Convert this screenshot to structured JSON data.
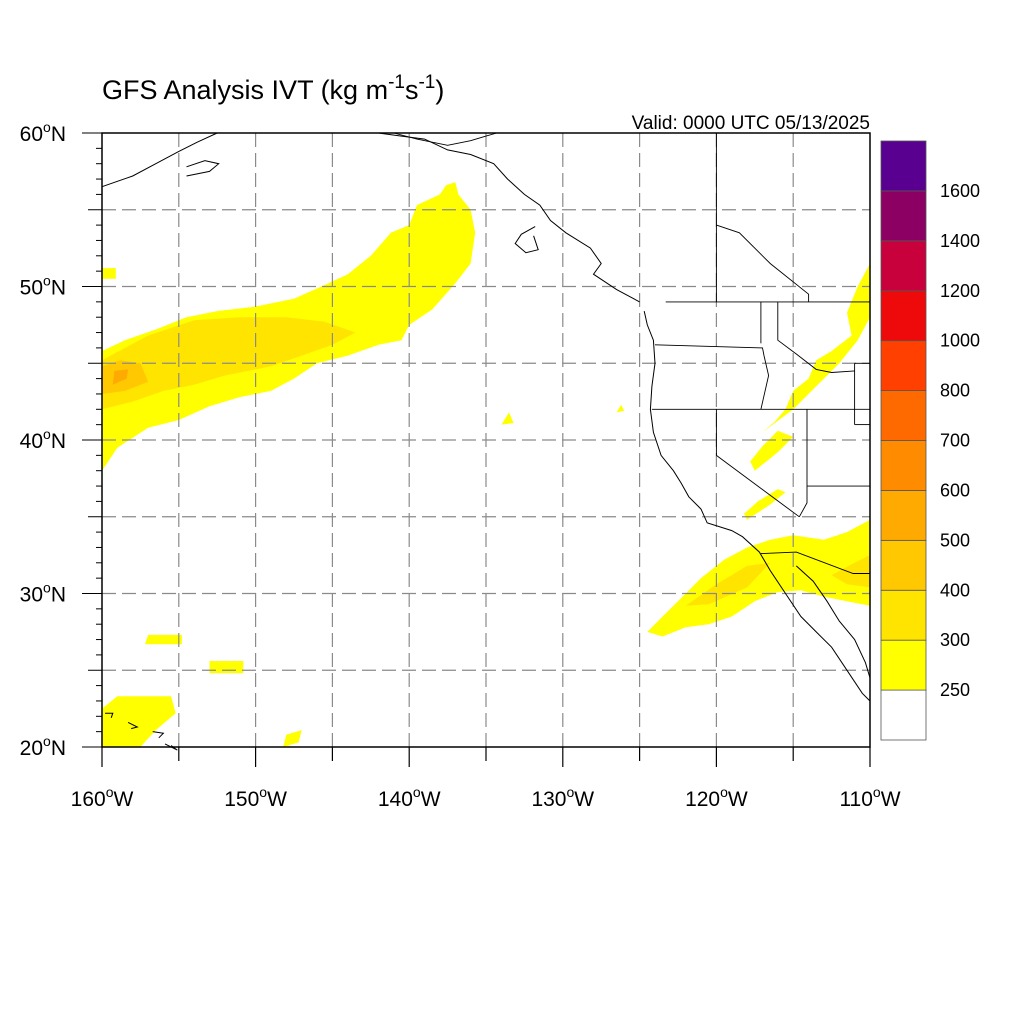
{
  "title": {
    "main": "GFS Analysis IVT (kg m",
    "sup1": "-1",
    "mid": "s",
    "sup2": "-1",
    "close": ")"
  },
  "valid_time": "Valid: 0000 UTC 05/13/2025",
  "map": {
    "projection": "cylindrical equidistant",
    "lon_range": [
      -160,
      -110
    ],
    "lat_range": [
      20,
      60
    ],
    "grid": "dashed gray every 5 degrees",
    "lat_labels": [
      "20",
      "30",
      "40",
      "50",
      "60"
    ],
    "lat_suffix": "N",
    "lon_labels": [
      "160",
      "150",
      "140",
      "130",
      "120",
      "110"
    ],
    "lon_suffix": "W"
  },
  "colorbar": {
    "labels": [
      "250",
      "300",
      "400",
      "500",
      "600",
      "700",
      "800",
      "1000",
      "1200",
      "1400",
      "1600"
    ],
    "colors": [
      "#ffffff",
      "#ffff00",
      "#ffe400",
      "#ffc800",
      "#ffaa00",
      "#ff8c00",
      "#ff6a00",
      "#ff4000",
      "#ee0a0a",
      "#c8003c",
      "#8c0064",
      "#5a0090"
    ]
  },
  "ivt_regions": [
    {
      "level": 1,
      "pts": [
        [
          -160,
          38
        ],
        [
          -159,
          39.5
        ],
        [
          -157,
          40.8
        ],
        [
          -155,
          41.3
        ],
        [
          -153,
          42.2
        ],
        [
          -151,
          42.8
        ],
        [
          -149,
          43.2
        ],
        [
          -147.5,
          44
        ],
        [
          -146,
          45
        ],
        [
          -144,
          45.5
        ],
        [
          -142,
          46.2
        ],
        [
          -140.5,
          46.5
        ],
        [
          -140,
          47.5
        ],
        [
          -138.5,
          48.5
        ],
        [
          -137,
          50.2
        ],
        [
          -136,
          51.5
        ],
        [
          -135.7,
          53.5
        ],
        [
          -136,
          55
        ],
        [
          -136.8,
          56
        ],
        [
          -137,
          56.8
        ],
        [
          -137.6,
          56.6
        ],
        [
          -138,
          56
        ],
        [
          -139.5,
          55.3
        ],
        [
          -140,
          54
        ],
        [
          -141.2,
          53.5
        ],
        [
          -142.5,
          52
        ],
        [
          -144,
          50.8
        ],
        [
          -145.5,
          50.1
        ],
        [
          -147.5,
          49.2
        ],
        [
          -150,
          48.7
        ],
        [
          -152.5,
          48.4
        ],
        [
          -154.5,
          48
        ],
        [
          -156.5,
          47.2
        ],
        [
          -158.5,
          46.5
        ],
        [
          -160,
          45.8
        ]
      ]
    },
    {
      "level": 2,
      "pts": [
        [
          -160,
          42
        ],
        [
          -158,
          42.5
        ],
        [
          -156,
          43.2
        ],
        [
          -154,
          43.6
        ],
        [
          -152,
          44.2
        ],
        [
          -149,
          44.8
        ],
        [
          -147,
          45.5
        ],
        [
          -145,
          46.2
        ],
        [
          -143.5,
          47
        ],
        [
          -145.5,
          47.7
        ],
        [
          -148,
          48
        ],
        [
          -151,
          48
        ],
        [
          -154,
          47.8
        ],
        [
          -157,
          46.8
        ],
        [
          -160,
          45.2
        ]
      ]
    },
    {
      "level": 3,
      "pts": [
        [
          -160,
          43
        ],
        [
          -158.5,
          43.2
        ],
        [
          -157,
          43.8
        ],
        [
          -157.5,
          45
        ],
        [
          -158.8,
          45.2
        ],
        [
          -160,
          44.8
        ]
      ]
    },
    {
      "level": 4,
      "pts": [
        [
          -159.3,
          43.6
        ],
        [
          -158.4,
          44
        ],
        [
          -158.3,
          44.6
        ],
        [
          -159.2,
          44.5
        ]
      ]
    },
    {
      "level": 1,
      "pts": [
        [
          -124.5,
          27.5
        ],
        [
          -123.5,
          28.5
        ],
        [
          -122.5,
          29.5
        ],
        [
          -121,
          31
        ],
        [
          -119.5,
          32.2
        ],
        [
          -118,
          33
        ],
        [
          -116.5,
          33.5
        ],
        [
          -115,
          33.8
        ],
        [
          -113,
          33.5
        ],
        [
          -111.5,
          34
        ],
        [
          -110,
          34.8
        ],
        [
          -110,
          29.2
        ],
        [
          -111.5,
          29.5
        ],
        [
          -113,
          29.8
        ],
        [
          -114.5,
          30.2
        ],
        [
          -116,
          30.1
        ],
        [
          -117.5,
          29.5
        ],
        [
          -119,
          28.5
        ],
        [
          -120.5,
          28
        ],
        [
          -122,
          27.8
        ],
        [
          -123.5,
          27.2
        ]
      ]
    },
    {
      "level": 2,
      "pts": [
        [
          -122,
          29.2
        ],
        [
          -120,
          30.6
        ],
        [
          -118,
          31.8
        ],
        [
          -116.5,
          32
        ],
        [
          -118,
          30.4
        ],
        [
          -120.5,
          29.3
        ]
      ]
    },
    {
      "level": 2,
      "pts": [
        [
          -112.5,
          31.2
        ],
        [
          -111,
          32
        ],
        [
          -110,
          32.5
        ],
        [
          -110,
          30.4
        ],
        [
          -111.5,
          30.6
        ]
      ]
    },
    {
      "level": 1,
      "pts": [
        [
          -117,
          40.5
        ],
        [
          -115,
          42
        ],
        [
          -113.5,
          43.5
        ],
        [
          -112,
          45
        ],
        [
          -110.8,
          46.5
        ],
        [
          -110,
          48
        ],
        [
          -110,
          51.5
        ],
        [
          -110.8,
          50
        ],
        [
          -111.5,
          48.3
        ],
        [
          -111.2,
          46.8
        ],
        [
          -112.5,
          45.8
        ],
        [
          -113.5,
          45.2
        ],
        [
          -114,
          44
        ],
        [
          -115,
          43.2
        ],
        [
          -115.5,
          42
        ],
        [
          -116.2,
          41.2
        ]
      ]
    },
    {
      "level": 1,
      "pts": [
        [
          -117.5,
          38
        ],
        [
          -116,
          39.2
        ],
        [
          -115,
          40.2
        ],
        [
          -116,
          40.6
        ],
        [
          -117,
          39.6
        ],
        [
          -117.8,
          38.6
        ]
      ]
    },
    {
      "level": 1,
      "pts": [
        [
          -118,
          34.8
        ],
        [
          -116.5,
          35.8
        ],
        [
          -115.5,
          36.6
        ],
        [
          -116,
          36.8
        ],
        [
          -117.3,
          36
        ],
        [
          -118.2,
          35.2
        ]
      ]
    },
    {
      "level": 1,
      "pts": [
        [
          -160,
          20
        ],
        [
          -160,
          22.5
        ],
        [
          -159,
          23.3
        ],
        [
          -155.5,
          23.3
        ],
        [
          -155.2,
          22.2
        ],
        [
          -156.5,
          21.1
        ],
        [
          -157.5,
          20
        ]
      ]
    },
    {
      "level": 1,
      "pts": [
        [
          -157.2,
          26.7
        ],
        [
          -157,
          27.3
        ],
        [
          -154.8,
          27.3
        ],
        [
          -154.8,
          26.7
        ]
      ]
    },
    {
      "level": 1,
      "pts": [
        [
          -153,
          24.8
        ],
        [
          -153,
          25.6
        ],
        [
          -150.8,
          25.6
        ],
        [
          -150.8,
          24.8
        ]
      ]
    },
    {
      "level": 1,
      "pts": [
        [
          -148.2,
          20
        ],
        [
          -148,
          20.8
        ],
        [
          -147,
          21.1
        ],
        [
          -147.2,
          20.3
        ]
      ]
    },
    {
      "level": 1,
      "pts": [
        [
          -160,
          50.5
        ],
        [
          -160,
          51.2
        ],
        [
          -159.1,
          51.2
        ],
        [
          -159.1,
          50.5
        ]
      ]
    },
    {
      "level": 1,
      "pts": [
        [
          -134,
          41
        ],
        [
          -133.5,
          41.8
        ],
        [
          -133.2,
          41.1
        ]
      ]
    },
    {
      "level": 1,
      "pts": [
        [
          -126.5,
          41.8
        ],
        [
          -126.2,
          42.3
        ],
        [
          -126,
          41.9
        ]
      ]
    }
  ],
  "coastlines": [
    [
      [
        -124.7,
        48.4
      ],
      [
        -124.5,
        47.5
      ],
      [
        -124.1,
        46.5
      ],
      [
        -124,
        45
      ],
      [
        -124.2,
        43.5
      ],
      [
        -124.3,
        42
      ],
      [
        -124.1,
        40.5
      ],
      [
        -123.6,
        39
      ],
      [
        -122.8,
        38
      ],
      [
        -122.3,
        37.2
      ],
      [
        -121.8,
        36.3
      ],
      [
        -121,
        35.5
      ],
      [
        -120.6,
        34.6
      ],
      [
        -119,
        34.1
      ],
      [
        -118.3,
        33.7
      ],
      [
        -117.2,
        32.7
      ],
      [
        -116.5,
        31.5
      ],
      [
        -115.5,
        30
      ],
      [
        -114.5,
        28.5
      ],
      [
        -113.5,
        27.5
      ],
      [
        -112.5,
        26.5
      ],
      [
        -111.5,
        25
      ],
      [
        -110.5,
        23.5
      ],
      [
        -110,
        23
      ]
    ],
    [
      [
        -114.8,
        31.8
      ],
      [
        -113.7,
        30.8
      ],
      [
        -112.8,
        29.5
      ],
      [
        -112,
        28.2
      ],
      [
        -111,
        27
      ],
      [
        -110.3,
        25.5
      ],
      [
        -110,
        24.5
      ]
    ],
    [
      [
        -125,
        49
      ],
      [
        -126.5,
        49.8
      ],
      [
        -128,
        50.8
      ],
      [
        -127.5,
        51.5
      ],
      [
        -128.2,
        52.5
      ],
      [
        -129.8,
        53.5
      ],
      [
        -130.8,
        54.3
      ],
      [
        -131.5,
        55.3
      ],
      [
        -132.5,
        56
      ],
      [
        -133.6,
        57
      ],
      [
        -134.5,
        58
      ],
      [
        -136,
        58.6
      ],
      [
        -137.5,
        58.9
      ],
      [
        -139,
        59.6
      ],
      [
        -140.5,
        59.8
      ],
      [
        -142,
        60
      ]
    ],
    [
      [
        -131.8,
        53.9
      ],
      [
        -132.7,
        53.4
      ],
      [
        -133.1,
        52.8
      ],
      [
        -132.4,
        52.2
      ],
      [
        -131.6,
        52.4
      ],
      [
        -131.9,
        53.3
      ]
    ],
    [
      [
        -160,
        56.5
      ],
      [
        -158,
        57.2
      ],
      [
        -156.5,
        58
      ],
      [
        -155,
        58.8
      ],
      [
        -153.8,
        59.4
      ],
      [
        -152.5,
        60
      ]
    ],
    [
      [
        -154.5,
        57.2
      ],
      [
        -153,
        57.5
      ],
      [
        -152.4,
        58
      ],
      [
        -153.3,
        58.2
      ],
      [
        -154.5,
        57.8
      ]
    ],
    [
      [
        -159.8,
        22.2
      ],
      [
        -159.3,
        22.2
      ],
      [
        -159.4,
        21.9
      ]
    ],
    [
      [
        -158.3,
        21.6
      ],
      [
        -157.7,
        21.3
      ],
      [
        -158.1,
        21.2
      ]
    ],
    [
      [
        -156.7,
        21.0
      ],
      [
        -156,
        20.9
      ],
      [
        -156.3,
        20.6
      ]
    ],
    [
      [
        -155.9,
        20.2
      ],
      [
        -155.1,
        19.8
      ],
      [
        -155.5,
        20.1
      ]
    ]
  ],
  "borders": [
    [
      [
        -123.3,
        49
      ],
      [
        -110,
        49
      ]
    ],
    [
      [
        -124,
        46.2
      ],
      [
        -117,
        46
      ],
      [
        -116.9,
        45.5
      ],
      [
        -116.6,
        44.2
      ],
      [
        -117.1,
        42
      ]
    ],
    [
      [
        -124.2,
        42
      ],
      [
        -110,
        42
      ]
    ],
    [
      [
        -120,
        42
      ],
      [
        -120,
        39
      ],
      [
        -114.6,
        35
      ]
    ],
    [
      [
        -117.1,
        49
      ],
      [
        -117.1,
        46.3
      ]
    ],
    [
      [
        -116,
        49
      ],
      [
        -116,
        46.5
      ],
      [
        -114.8,
        45.6
      ],
      [
        -113.5,
        44.6
      ],
      [
        -112.5,
        44.4
      ],
      [
        -111,
        44.5
      ]
    ],
    [
      [
        -114.1,
        42
      ],
      [
        -114.1,
        35.9
      ],
      [
        -114.6,
        35
      ]
    ],
    [
      [
        -114.1,
        37
      ],
      [
        -110,
        37
      ]
    ],
    [
      [
        -111,
        45
      ],
      [
        -110,
        45
      ]
    ],
    [
      [
        -111,
        45
      ],
      [
        -111,
        41
      ]
    ],
    [
      [
        -111,
        41
      ],
      [
        -110,
        41
      ]
    ],
    [
      [
        -117.1,
        32.6
      ],
      [
        -114.8,
        32.7
      ],
      [
        -111.1,
        31.3
      ],
      [
        -110,
        31.3
      ]
    ],
    [
      [
        -141,
        60
      ],
      [
        -139.5,
        59.6
      ],
      [
        -137.5,
        59.2
      ],
      [
        -136,
        59.5
      ],
      [
        -135,
        59.8
      ],
      [
        -134.3,
        60
      ]
    ],
    [
      [
        -120,
        49
      ],
      [
        -120,
        60
      ]
    ],
    [
      [
        -114,
        49
      ],
      [
        -114,
        49.5
      ],
      [
        -116.5,
        51.5
      ],
      [
        -118.5,
        53.5
      ],
      [
        -120,
        54
      ]
    ]
  ]
}
